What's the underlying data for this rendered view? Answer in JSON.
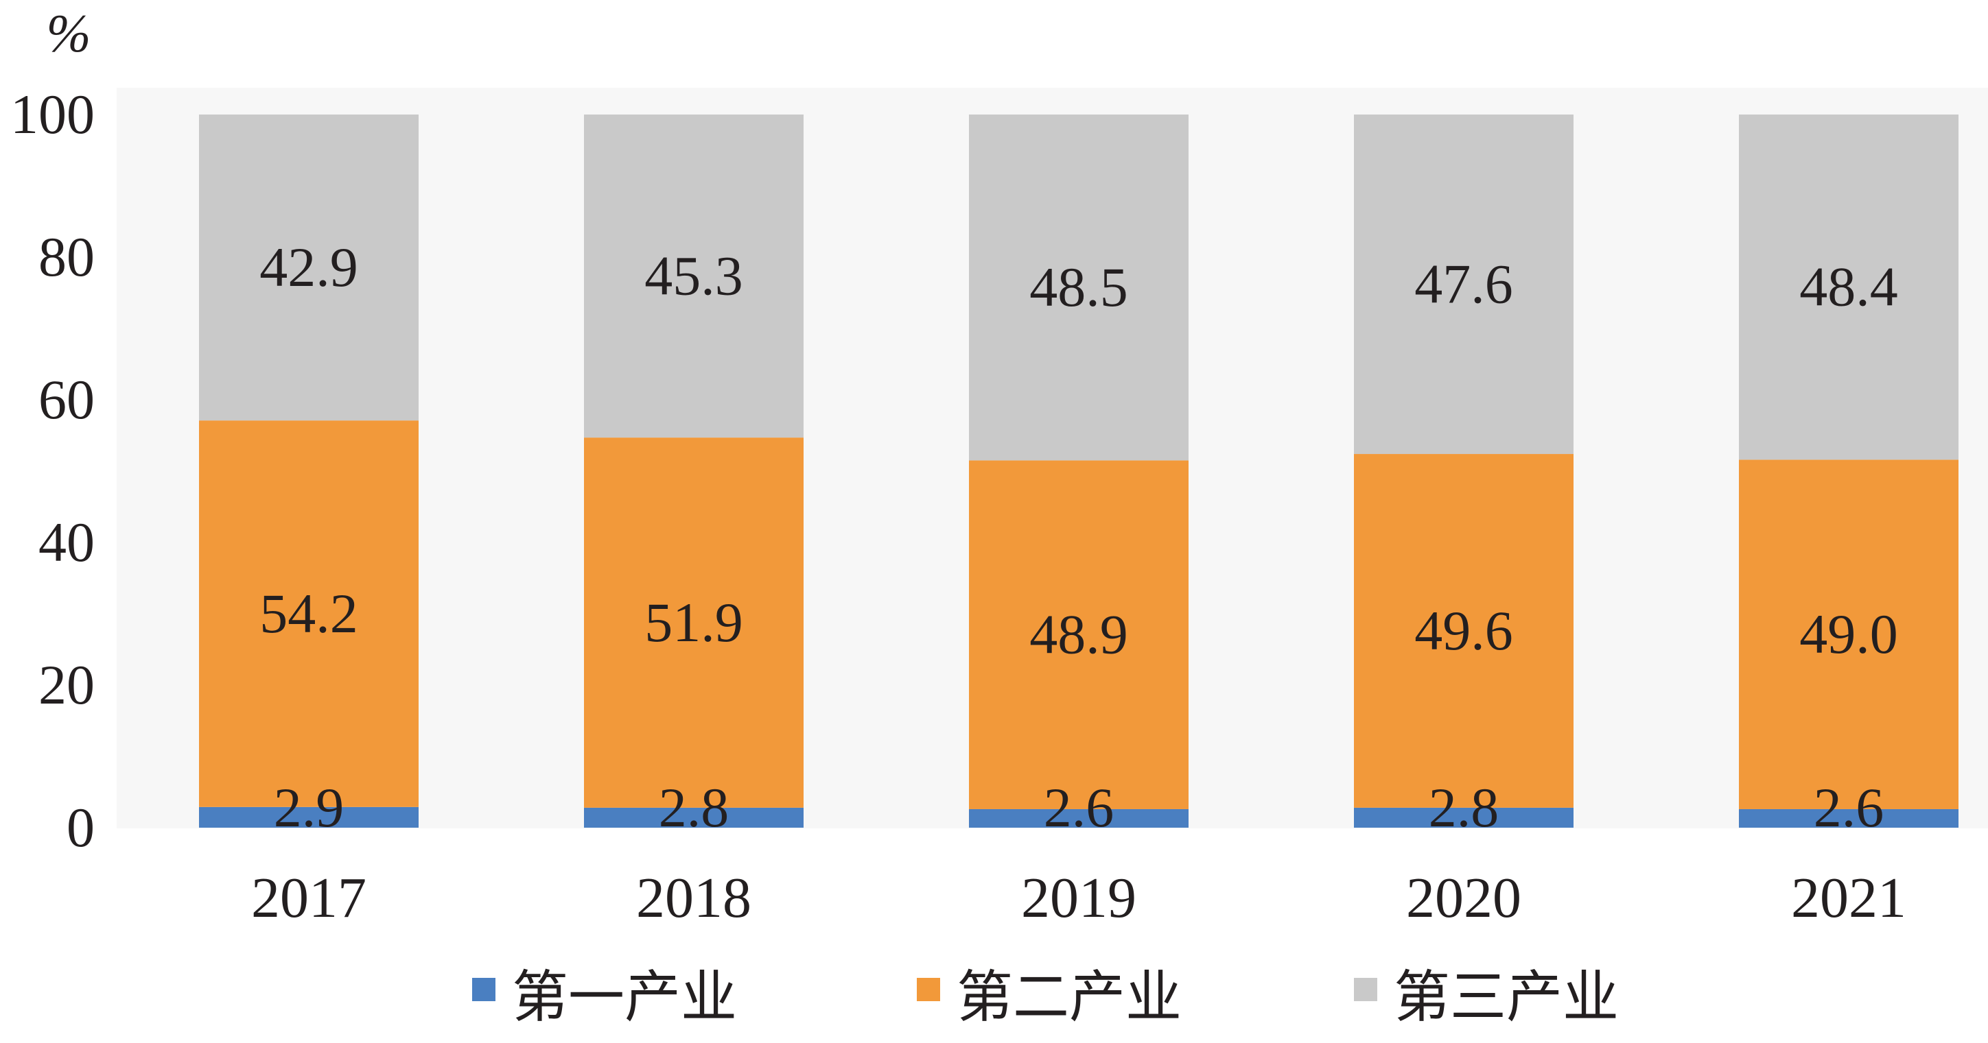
{
  "chart_data": {
    "type": "bar",
    "stacked": true,
    "y_unit": "%",
    "categories": [
      "2017",
      "2018",
      "2019",
      "2020",
      "2021"
    ],
    "series": [
      {
        "name": "第一产业",
        "color": "#4a7fc1",
        "values": [
          2.9,
          2.8,
          2.6,
          2.8,
          2.6
        ]
      },
      {
        "name": "第二产业",
        "color": "#f2993a",
        "values": [
          54.2,
          51.9,
          48.9,
          49.6,
          49.0
        ]
      },
      {
        "name": "第三产业",
        "color": "#c9c9c9",
        "values": [
          42.9,
          45.3,
          48.5,
          47.6,
          48.4
        ]
      }
    ],
    "ylim": [
      0,
      100
    ],
    "yticks": [
      "0",
      "20",
      "40",
      "60",
      "80",
      "100"
    ],
    "grid": false,
    "legend_position": "bottom",
    "plot_background": "#f7f7f7"
  }
}
